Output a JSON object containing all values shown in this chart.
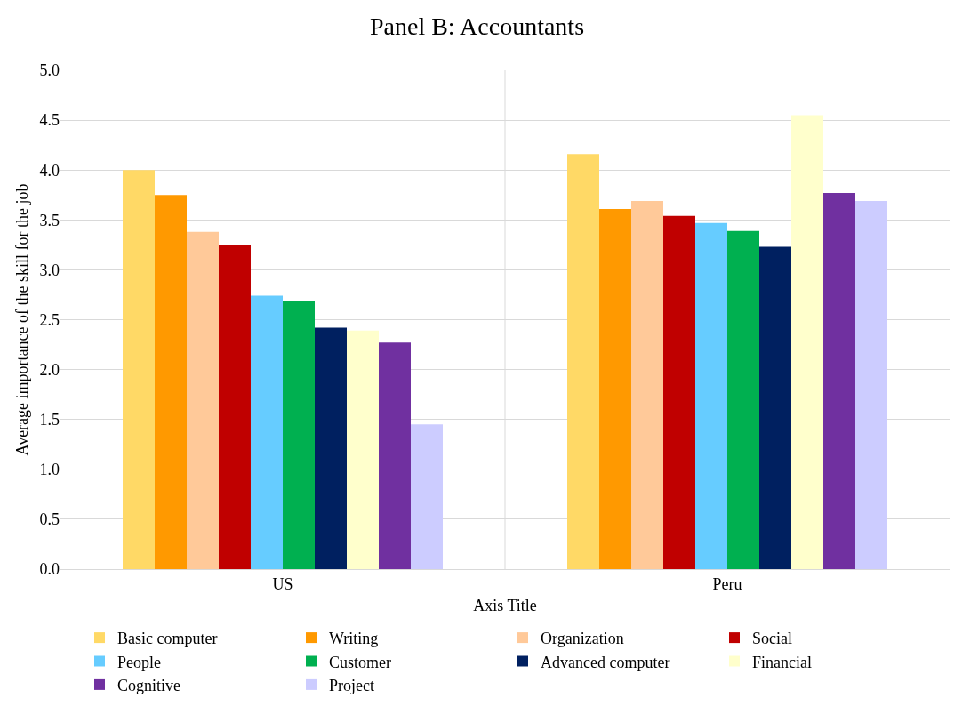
{
  "chart_data": {
    "type": "bar",
    "title": "Panel B: Accountants",
    "xlabel": "Axis Title",
    "ylabel": "Average importance of the skill for the job",
    "categories": [
      "US",
      "Peru"
    ],
    "series": [
      {
        "name": "Basic computer",
        "color": "#ffd966",
        "values": [
          4.0,
          4.16
        ]
      },
      {
        "name": "Writing",
        "color": "#ff9900",
        "values": [
          3.75,
          3.61
        ]
      },
      {
        "name": "Organization",
        "color": "#ffc999",
        "values": [
          3.38,
          3.69
        ]
      },
      {
        "name": "Social",
        "color": "#c00000",
        "values": [
          3.25,
          3.54
        ]
      },
      {
        "name": "People",
        "color": "#66ccff",
        "values": [
          2.74,
          3.47
        ]
      },
      {
        "name": "Customer",
        "color": "#00b050",
        "values": [
          2.69,
          3.39
        ]
      },
      {
        "name": "Advanced computer",
        "color": "#002060",
        "values": [
          2.42,
          3.23
        ]
      },
      {
        "name": "Financial",
        "color": "#ffffcc",
        "values": [
          2.39,
          4.55
        ]
      },
      {
        "name": "Cognitive",
        "color": "#7030a0",
        "values": [
          2.27,
          3.77
        ]
      },
      {
        "name": "Project",
        "color": "#ccccff",
        "values": [
          1.45,
          3.69
        ]
      }
    ],
    "ylim": [
      0,
      5
    ],
    "yticks": [
      {
        "value": 0,
        "label": "0.0"
      },
      {
        "value": 0.5,
        "label": "0.5"
      },
      {
        "value": 1,
        "label": "1.0"
      },
      {
        "value": 1.5,
        "label": "1.5"
      },
      {
        "value": 2,
        "label": "2.0"
      },
      {
        "value": 2.5,
        "label": "2.5"
      },
      {
        "value": 3,
        "label": "3.0"
      },
      {
        "value": 3.5,
        "label": "3.5"
      },
      {
        "value": 4,
        "label": "4.0"
      },
      {
        "value": 4.5,
        "label": "4.5"
      },
      {
        "value": 5,
        "label": "5.0"
      }
    ],
    "grid": true,
    "legend": "bottom"
  }
}
